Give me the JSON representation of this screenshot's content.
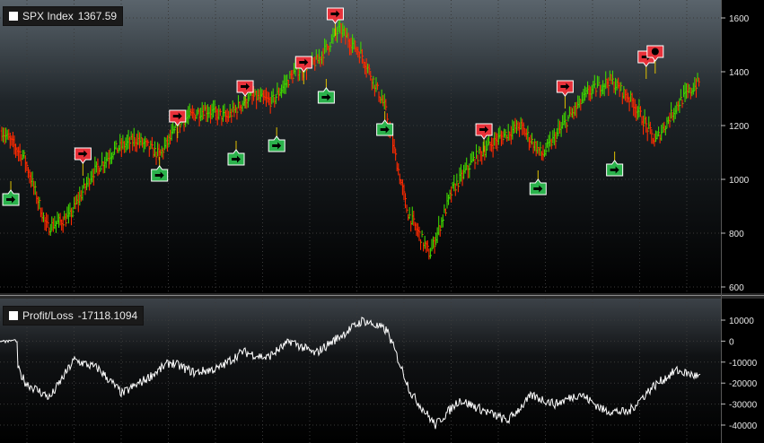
{
  "panels": {
    "top": {
      "legend_label": "SPX Index",
      "legend_value": "1367.59"
    },
    "bottom": {
      "legend_label": "Profit/Loss",
      "legend_value": "-17118.1094"
    }
  },
  "colors": {
    "background": "#000000",
    "grid": "#3a3a3a",
    "up_bar": "#3fd400",
    "down_bar": "#ff2a00",
    "buy_marker": "#2bb24c",
    "sell_marker": "#e8313a",
    "pl_line": "#ffffff",
    "separator": "#8a8a8a"
  },
  "chart_data": [
    {
      "type": "line",
      "title": "SPX Index",
      "current_value": 1367.59,
      "ylim": [
        600,
        1650
      ],
      "yticks": [
        "1600",
        "1400",
        "1200",
        "1000",
        "800",
        "600"
      ],
      "grid": true,
      "x": [
        0,
        5,
        10,
        15,
        20,
        25,
        30,
        35,
        40,
        45,
        50,
        55,
        60,
        65,
        70,
        75,
        80,
        85,
        90,
        95,
        100
      ],
      "values": [
        1180,
        1080,
        820,
        860,
        1020,
        1110,
        1150,
        1090,
        1220,
        1260,
        1230,
        1310,
        1290,
        1400,
        1440,
        1560,
        1460,
        1270,
        880,
        720,
        960
      ],
      "values_continued": {
        "x": [
          105,
          110,
          115,
          120,
          125,
          130,
          135,
          140,
          145,
          150,
          155
        ],
        "values": [
          1080,
          1150,
          1200,
          1090,
          1210,
          1320,
          1370,
          1290,
          1140,
          1280,
          1368
        ]
      },
      "signals": [
        {
          "side": "buy",
          "icon": "arrow-right-icon",
          "x": 2,
          "price": 960
        },
        {
          "side": "sell",
          "icon": "arrow-right-icon",
          "x": 18,
          "price": 1060
        },
        {
          "side": "buy",
          "icon": "arrow-right-icon",
          "x": 35,
          "price": 1050
        },
        {
          "side": "sell",
          "icon": "arrow-right-icon",
          "x": 39,
          "price": 1200
        },
        {
          "side": "buy",
          "icon": "arrow-right-icon",
          "x": 52,
          "price": 1110
        },
        {
          "side": "sell",
          "icon": "arrow-right-icon",
          "x": 54,
          "price": 1310
        },
        {
          "side": "buy",
          "icon": "arrow-right-icon",
          "x": 61,
          "price": 1160
        },
        {
          "side": "sell",
          "icon": "arrow-right-icon",
          "x": 67,
          "price": 1400
        },
        {
          "side": "buy",
          "icon": "arrow-right-icon",
          "x": 72,
          "price": 1340
        },
        {
          "side": "sell",
          "icon": "arrow-right-icon",
          "x": 74,
          "price": 1580
        },
        {
          "side": "buy",
          "icon": "arrow-right-icon",
          "x": 85,
          "price": 1220
        },
        {
          "side": "sell",
          "icon": "arrow-right-icon",
          "x": 107,
          "price": 1150
        },
        {
          "side": "buy",
          "icon": "arrow-right-icon",
          "x": 119,
          "price": 1000
        },
        {
          "side": "sell",
          "icon": "arrow-right-icon",
          "x": 125,
          "price": 1310
        },
        {
          "side": "buy",
          "icon": "arrow-right-icon",
          "x": 136,
          "price": 1070
        },
        {
          "side": "sell",
          "icon": "arrow-right-icon",
          "x": 143,
          "price": 1420
        },
        {
          "side": "sell",
          "icon": "circle-icon",
          "x": 145,
          "price": 1440
        }
      ]
    },
    {
      "type": "line",
      "title": "Profit/Loss",
      "current_value": -17118.1094,
      "ylim": [
        -45000,
        15000
      ],
      "yticks": [
        "10000",
        "0",
        "-10000",
        "-20000",
        "-30000",
        "-40000"
      ],
      "grid": true,
      "x": [
        0,
        5,
        10,
        15,
        20,
        25,
        30,
        35,
        40,
        45,
        50,
        55,
        60,
        65,
        70,
        75,
        80,
        85,
        90,
        95,
        100,
        105,
        110,
        115,
        120,
        125,
        130,
        135,
        140,
        145
      ],
      "values": [
        0,
        -20000,
        -27000,
        -9000,
        -13000,
        -25000,
        -18000,
        -10000,
        -15000,
        -13000,
        -5000,
        -8000,
        0,
        -6000,
        2000,
        10000,
        5000,
        -25000,
        -40000,
        -28000,
        -33000,
        -38000,
        -26000,
        -30000,
        -25000,
        -33000,
        -34000,
        -22000,
        -14000,
        -17118
      ]
    }
  ]
}
